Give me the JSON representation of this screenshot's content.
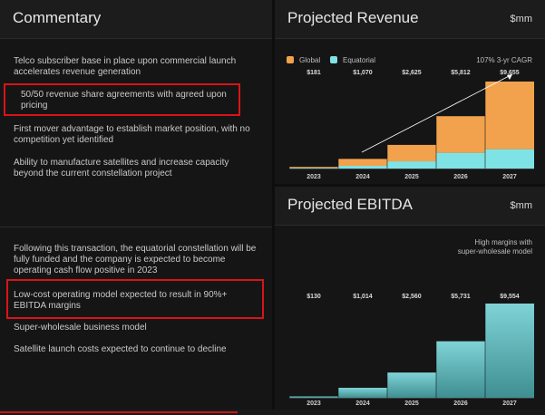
{
  "commentary": {
    "title": "Commentary",
    "bullets": [
      "Telco subscriber base in place upon commercial launch accelerates revenue generation",
      "50/50 revenue share agreements with agreed upon pricing",
      "First mover advantage to establish market position, with no competition yet identified",
      "Ability to manufacture satellites and increase capacity beyond the current constellation project",
      "Following this transaction, the equatorial constellation will be fully funded and the company is expected to become operating cash flow positive in 2023",
      "Low-cost operating model expected to result in 90%+ EBITDA margins",
      "Super-wholesale business model",
      "Satellite launch costs expected to continue to decline"
    ]
  },
  "colors": {
    "global": "#f2a24c",
    "equatorial": "#7fe3e5",
    "ebitda_top": "#7fd3d6",
    "ebitda_bottom": "#3f8f92",
    "highlight": "#d81418"
  },
  "chart_data": [
    {
      "type": "bar",
      "stacked": true,
      "title": "Projected Revenue",
      "unit": "$mm",
      "categories": [
        "2023",
        "2024",
        "2025",
        "2026",
        "2027"
      ],
      "totals": [
        "$181",
        "$1,070",
        "$2,625",
        "$5,812",
        "$9,655"
      ],
      "series": [
        {
          "name": "Equatorial",
          "values": [
            60,
            300,
            800,
            1750,
            2150
          ]
        },
        {
          "name": "Global",
          "values": [
            121,
            770,
            1825,
            4062,
            7505
          ]
        }
      ],
      "annotation": "107% 3-yr CAGR",
      "ylim": [
        0,
        9655
      ]
    },
    {
      "type": "bar",
      "title": "Projected EBITDA",
      "unit": "$mm",
      "categories": [
        "2023",
        "2024",
        "2025",
        "2026",
        "2027"
      ],
      "labels": [
        "$130",
        "$1,014",
        "$2,560",
        "$5,731",
        "$9,554"
      ],
      "values": [
        130,
        1014,
        2560,
        5731,
        9554
      ],
      "annotation": "High margins with super-wholesale model",
      "ylim": [
        0,
        9554
      ]
    }
  ]
}
